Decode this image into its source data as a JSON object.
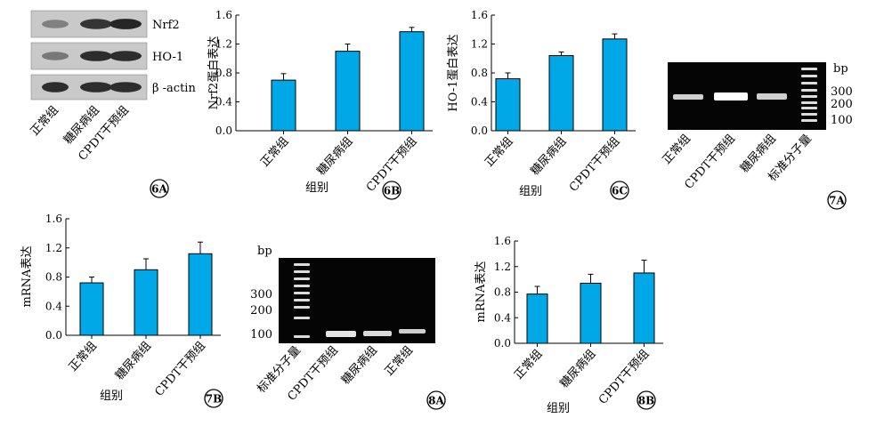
{
  "panels": {
    "p6A": {
      "tag": "6A",
      "bands": [
        "Nrf2",
        "HO-1",
        "β -actin"
      ],
      "lanes": [
        "正常组",
        "糖尿病组",
        "CPDT干预组"
      ],
      "intensity": [
        [
          0.35,
          0.85,
          0.95
        ],
        [
          0.4,
          0.9,
          0.9
        ],
        [
          0.9,
          0.9,
          0.9
        ]
      ]
    },
    "p7A": {
      "tag": "7A",
      "unit": "bp",
      "marker_labels": [
        "300",
        "200",
        "100"
      ],
      "lanes": [
        "正常组",
        "CPDT干预组",
        "糖尿病组",
        "标准分子量"
      ]
    },
    "p8A": {
      "tag": "8A",
      "unit": "bp",
      "marker_labels": [
        "300",
        "200",
        "100"
      ],
      "lanes": [
        "标准分子量",
        "CPDT干预组",
        "糖尿病组",
        "正常组"
      ]
    }
  },
  "chart_data": [
    {
      "id": "6B",
      "type": "bar",
      "tag": "6B",
      "ylabel": "Nrf2蛋白表达",
      "xlabel": "组别",
      "categories": [
        "正常组",
        "糖尿病组",
        "CPDT干预组"
      ],
      "values": [
        0.7,
        1.1,
        1.37
      ],
      "errors": [
        0.09,
        0.1,
        0.06
      ],
      "ylim": [
        0,
        1.6
      ],
      "yticks": [
        "0.0",
        "0.4",
        "0.8",
        "1.2",
        "1.6"
      ],
      "bar_color": "#00a8e8"
    },
    {
      "id": "6C",
      "type": "bar",
      "tag": "6C",
      "ylabel": "HO-1蛋白表达",
      "xlabel": "组别",
      "categories": [
        "正常组",
        "糖尿病组",
        "CPDT干预组"
      ],
      "values": [
        0.72,
        1.04,
        1.27
      ],
      "errors": [
        0.08,
        0.05,
        0.07
      ],
      "ylim": [
        0,
        1.6
      ],
      "yticks": [
        "0.0",
        "0.4",
        "0.8",
        "1.2",
        "1.6"
      ],
      "bar_color": "#00a8e8"
    },
    {
      "id": "7B",
      "type": "bar",
      "tag": "7B",
      "ylabel": "mRNA表达",
      "xlabel": "组别",
      "categories": [
        "正常组",
        "糖尿病组",
        "CPDT干预组"
      ],
      "values": [
        0.72,
        0.9,
        1.12
      ],
      "errors": [
        0.08,
        0.15,
        0.16
      ],
      "ylim": [
        0,
        1.6
      ],
      "yticks": [
        "0.0",
        "0.4",
        "0.8",
        "1.2",
        "1.6"
      ],
      "bar_color": "#00a8e8"
    },
    {
      "id": "8B",
      "type": "bar",
      "tag": "8B",
      "ylabel": "mRNA表达",
      "xlabel": "组别",
      "categories": [
        "正常组",
        "糖尿病组",
        "CPDT干预组"
      ],
      "values": [
        0.77,
        0.94,
        1.1
      ],
      "errors": [
        0.12,
        0.14,
        0.2
      ],
      "ylim": [
        0,
        1.6
      ],
      "yticks": [
        "0.0",
        "0.4",
        "0.8",
        "1.2",
        "1.6"
      ],
      "bar_color": "#00a8e8"
    }
  ]
}
